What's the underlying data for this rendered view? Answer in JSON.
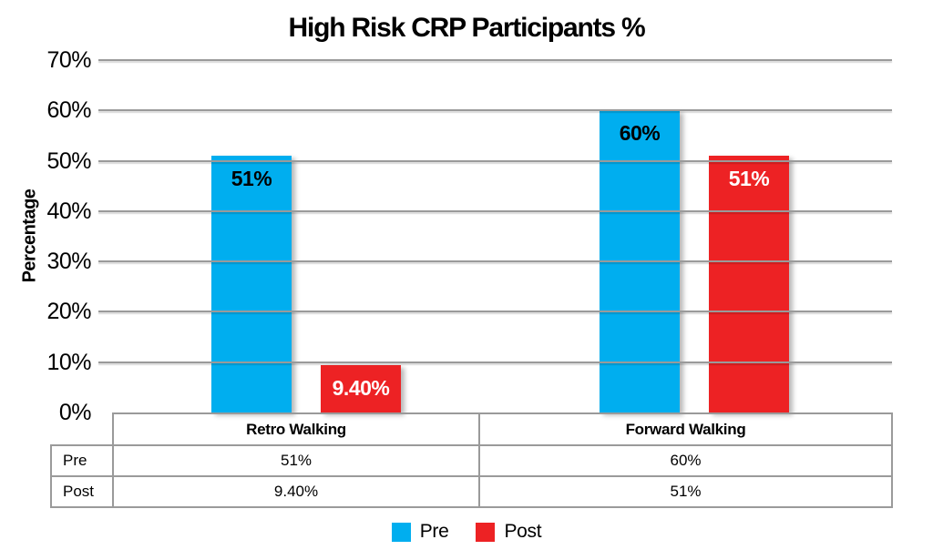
{
  "chart_data": {
    "type": "bar",
    "title": "High Risk CRP Participants %",
    "ylabel": "Percentage",
    "categories": [
      "Retro Walking",
      "Forward Walking"
    ],
    "series": [
      {
        "name": "Pre",
        "color": "#00AEEF",
        "label_color": "#000000",
        "values": [
          51,
          60
        ],
        "labels": [
          "51%",
          "60%"
        ]
      },
      {
        "name": "Post",
        "color": "#ED2224",
        "label_color": "#FFFFFF",
        "values": [
          9.4,
          51
        ],
        "labels": [
          "9.40%",
          "51%"
        ]
      }
    ],
    "ylim": [
      0,
      70
    ],
    "ytick_step": 10,
    "ytick_suffix": "%",
    "grid": true,
    "legend_position": "bottom",
    "data_table": {
      "row_headers": [
        "Pre",
        "Post"
      ],
      "rows": [
        [
          "51%",
          "60%"
        ],
        [
          "9.40%",
          "51%"
        ]
      ]
    },
    "colors": {
      "gridline": "#9A9A9A",
      "table_border": "#9A9A9A",
      "text": "#000000",
      "background": "#FFFFFF"
    }
  }
}
